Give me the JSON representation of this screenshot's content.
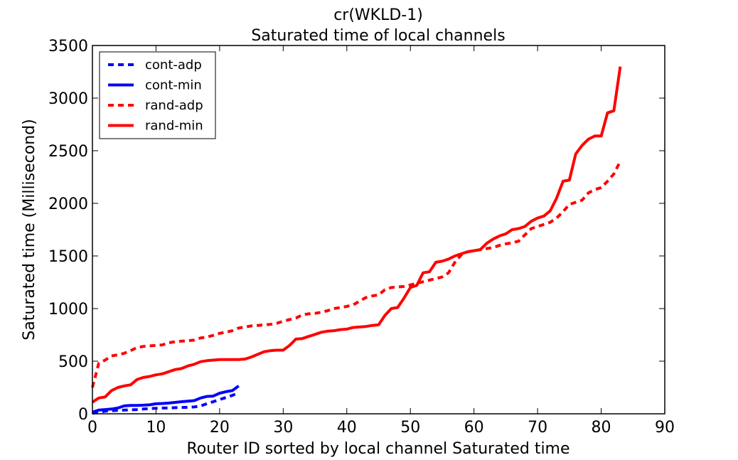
{
  "chart_data": {
    "type": "line",
    "title": "cr(WKLD-1)",
    "subtitle": "Saturated time of local channels",
    "xlabel": "Router ID sorted by local channel Saturated time",
    "ylabel": "Saturated time (Millisecond)",
    "xlim": [
      0,
      90
    ],
    "ylim": [
      0,
      3500
    ],
    "xticks": [
      0,
      10,
      20,
      30,
      40,
      50,
      60,
      70,
      80,
      90
    ],
    "yticks": [
      0,
      500,
      1000,
      1500,
      2000,
      2500,
      3000,
      3500
    ],
    "grid": false,
    "legend_position": "top-left",
    "series": [
      {
        "name": "cont-adp",
        "color": "#0000ff",
        "dash": "dashed",
        "x": [
          0,
          1,
          2,
          3,
          4,
          5,
          6,
          7,
          8,
          9,
          10,
          11,
          12,
          13,
          14,
          15,
          16,
          17,
          18,
          19,
          20,
          21,
          22,
          23
        ],
        "y": [
          5,
          15,
          25,
          30,
          32,
          35,
          38,
          40,
          45,
          50,
          52,
          55,
          55,
          58,
          60,
          62,
          65,
          75,
          95,
          115,
          135,
          155,
          175,
          200
        ]
      },
      {
        "name": "cont-min",
        "color": "#0000ff",
        "dash": "solid",
        "x": [
          0,
          1,
          2,
          3,
          4,
          5,
          6,
          7,
          8,
          9,
          10,
          11,
          12,
          13,
          14,
          15,
          16,
          17,
          18,
          19,
          20,
          21,
          22,
          23
        ],
        "y": [
          15,
          35,
          40,
          45,
          55,
          75,
          80,
          80,
          82,
          85,
          95,
          98,
          102,
          108,
          115,
          120,
          125,
          150,
          165,
          168,
          195,
          210,
          220,
          265
        ]
      },
      {
        "name": "rand-adp",
        "color": "#ff0000",
        "dash": "dashed",
        "x": [
          0,
          1,
          2,
          3,
          4,
          5,
          6,
          7,
          8,
          9,
          10,
          11,
          12,
          13,
          14,
          15,
          16,
          17,
          18,
          19,
          20,
          21,
          22,
          23,
          24,
          25,
          26,
          27,
          28,
          29,
          30,
          31,
          32,
          33,
          34,
          35,
          36,
          37,
          38,
          39,
          40,
          41,
          42,
          43,
          44,
          45,
          46,
          47,
          48,
          49,
          50,
          51,
          52,
          53,
          54,
          55,
          56,
          57,
          58,
          59,
          60,
          61,
          62,
          63,
          64,
          65,
          66,
          67,
          68,
          69,
          70,
          71,
          72,
          73,
          74,
          75,
          76,
          77,
          78,
          79,
          80,
          81,
          82,
          83
        ],
        "y": [
          250,
          480,
          510,
          550,
          560,
          575,
          600,
          630,
          640,
          645,
          650,
          655,
          675,
          685,
          690,
          695,
          700,
          720,
          730,
          745,
          765,
          775,
          790,
          815,
          825,
          835,
          840,
          845,
          850,
          860,
          880,
          895,
          910,
          940,
          950,
          955,
          965,
          980,
          1000,
          1010,
          1020,
          1035,
          1070,
          1105,
          1120,
          1130,
          1180,
          1200,
          1205,
          1210,
          1225,
          1240,
          1255,
          1270,
          1285,
          1300,
          1340,
          1440,
          1510,
          1540,
          1550,
          1560,
          1570,
          1580,
          1600,
          1615,
          1625,
          1640,
          1700,
          1760,
          1780,
          1800,
          1820,
          1860,
          1920,
          1990,
          2010,
          2030,
          2100,
          2130,
          2150,
          2210,
          2280,
          2400
        ]
      },
      {
        "name": "rand-min",
        "color": "#ff0000",
        "dash": "solid",
        "x": [
          0,
          1,
          2,
          3,
          4,
          5,
          6,
          7,
          8,
          9,
          10,
          11,
          12,
          13,
          14,
          15,
          16,
          17,
          18,
          19,
          20,
          21,
          22,
          23,
          24,
          25,
          26,
          27,
          28,
          29,
          30,
          31,
          32,
          33,
          34,
          35,
          36,
          37,
          38,
          39,
          40,
          41,
          42,
          43,
          44,
          45,
          46,
          47,
          48,
          49,
          50,
          51,
          52,
          53,
          54,
          55,
          56,
          57,
          58,
          59,
          60,
          61,
          62,
          63,
          64,
          65,
          66,
          67,
          68,
          69,
          70,
          71,
          72,
          73,
          74,
          75,
          76,
          77,
          78,
          79,
          80,
          81,
          82,
          83
        ],
        "y": [
          110,
          150,
          160,
          220,
          250,
          265,
          275,
          325,
          345,
          355,
          370,
          380,
          400,
          420,
          430,
          455,
          470,
          495,
          505,
          510,
          515,
          515,
          515,
          515,
          520,
          540,
          565,
          590,
          600,
          605,
          605,
          650,
          710,
          715,
          735,
          755,
          775,
          785,
          790,
          800,
          805,
          820,
          825,
          830,
          840,
          845,
          935,
          1000,
          1010,
          1100,
          1200,
          1220,
          1340,
          1350,
          1440,
          1450,
          1470,
          1500,
          1520,
          1540,
          1550,
          1560,
          1620,
          1660,
          1690,
          1710,
          1750,
          1760,
          1780,
          1830,
          1860,
          1880,
          1930,
          2050,
          2210,
          2220,
          2470,
          2550,
          2610,
          2640,
          2640,
          2860,
          2880,
          3300
        ]
      }
    ]
  }
}
